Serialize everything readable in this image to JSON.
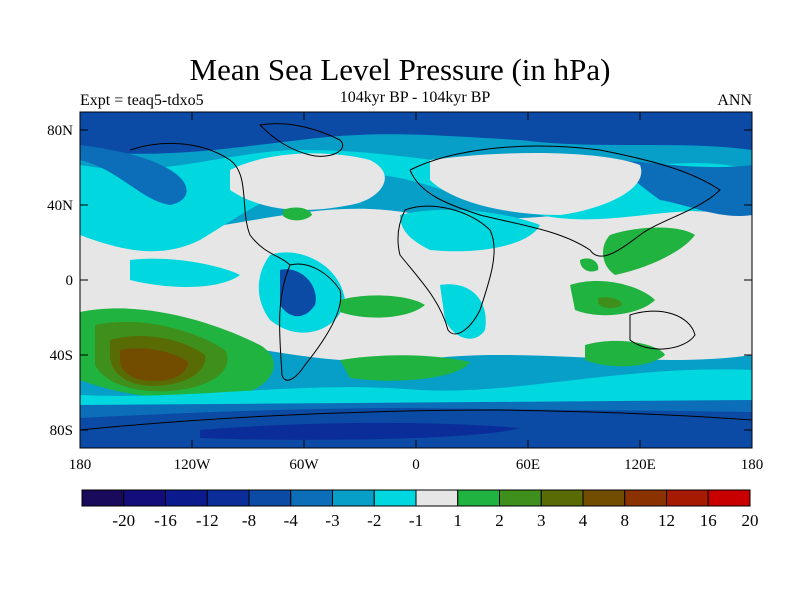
{
  "title": "Mean Sea Level Pressure (in hPa)",
  "subtitle": "104kyr BP - 104kyr BP",
  "left_label": "Expt = teaq5-tdxo5",
  "right_label": "ANN",
  "lat_ticks": [
    "80N",
    "40N",
    "0",
    "40S",
    "80S"
  ],
  "lon_ticks": [
    "180",
    "120W",
    "60W",
    "0",
    "60E",
    "120E",
    "180"
  ],
  "colorbar": {
    "labels": [
      "-20",
      "-16",
      "-12",
      "-8",
      "-4",
      "-3",
      "-2",
      "-1",
      "1",
      "2",
      "3",
      "4",
      "8",
      "12",
      "16",
      "20"
    ],
    "colors": [
      "#1a0a5c",
      "#120d7a",
      "#0b1a8c",
      "#0a2d99",
      "#0b4ba6",
      "#0c6eb8",
      "#079ec8",
      "#00d7df",
      "#e6e6e6",
      "#21b33f",
      "#3f8f1c",
      "#586b05",
      "#724d00",
      "#8a3300",
      "#a51a00",
      "#c80000"
    ]
  },
  "colors": {
    "ocean_neutral": "#e6e6e6",
    "cyan": "#00d7df",
    "light_blue": "#079ec8",
    "mid_blue": "#0c6eb8",
    "blue": "#0b4ba6",
    "deep_blue": "#0a2d99",
    "green": "#21b33f",
    "dark_green": "#3f8f1c",
    "olive": "#586b05",
    "brown": "#724d00"
  }
}
